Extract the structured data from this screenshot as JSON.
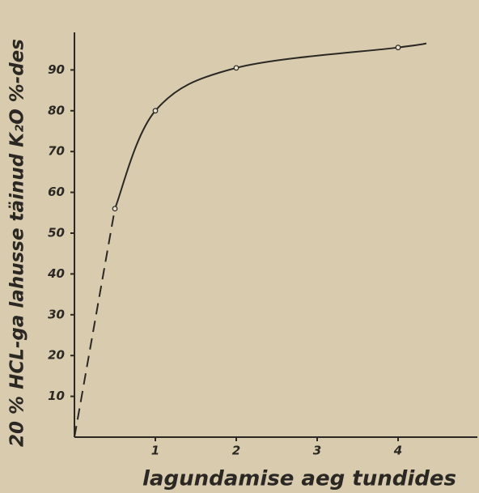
{
  "chart_data": {
    "type": "line",
    "xlabel": "lagundamise aeg tundides",
    "ylabel": "20 % HCL-ga lahusse täinud K₂O %-des",
    "xlim": [
      0,
      5
    ],
    "xticks": [
      1,
      2,
      3,
      4
    ],
    "ylim": [
      0,
      100
    ],
    "yticks": [
      10,
      20,
      30,
      40,
      50,
      60,
      70,
      80,
      90
    ],
    "color": "#2b2824",
    "series": [
      {
        "style": "dashed",
        "x": [
          0,
          0.5
        ],
        "values": [
          0,
          56
        ]
      },
      {
        "style": "solid",
        "x": [
          0.5,
          1,
          2,
          4,
          4.35
        ],
        "values": [
          56,
          80,
          90.5,
          95.5,
          96.5
        ]
      },
      {
        "style": "markers",
        "x": [
          0.5,
          1,
          2,
          4
        ],
        "values": [
          56,
          80,
          90.5,
          95.5
        ]
      }
    ]
  }
}
